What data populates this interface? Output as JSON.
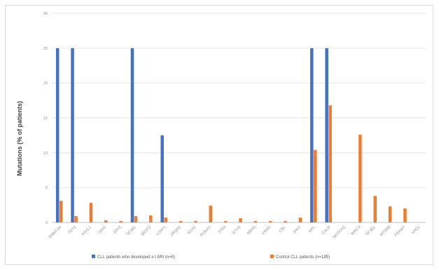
{
  "chart_data": {
    "type": "bar",
    "ylabel": "Mutations (% of patients)",
    "ylim": [
      0,
      30
    ],
    "yticks": [
      0,
      5,
      10,
      15,
      20,
      25,
      30
    ],
    "grid": true,
    "legend_position": "bottom",
    "categories": [
      "DNMT3A",
      "TET2",
      "ASXL1",
      "IDH1",
      "IDH2",
      "SF3B1",
      "SRSF2",
      "U2AF1",
      "ZRSR2",
      "EZH2",
      "RUNX1",
      "TP53",
      "ETV6",
      "NRAS",
      "KRAS",
      "CBL",
      "JAK2",
      "MPL",
      "CALR",
      "NOTCH1",
      "BIRC3",
      "SF3B1",
      "MYD88",
      "FBXW7",
      "XPO1"
    ],
    "series": [
      {
        "name": "CLL patients who developed a t-MN (n=8)",
        "color": "#4472c4",
        "values": [
          25,
          25,
          0,
          0,
          0,
          25,
          0,
          12.5,
          0,
          0,
          0,
          0,
          0,
          0,
          0,
          0,
          0,
          25,
          25,
          0,
          0,
          0,
          0,
          0,
          0
        ]
      },
      {
        "name": "Control CLL patients (n=185)",
        "color": "#ed7d31",
        "values": [
          3.1,
          0.9,
          2.8,
          0.3,
          0.2,
          0.9,
          1.0,
          0.7,
          0.2,
          0.2,
          2.4,
          0.2,
          0.6,
          0.2,
          0.2,
          0.2,
          0.7,
          10.4,
          16.8,
          0,
          12.6,
          3.8,
          2.3,
          2.0,
          0
        ]
      }
    ]
  }
}
